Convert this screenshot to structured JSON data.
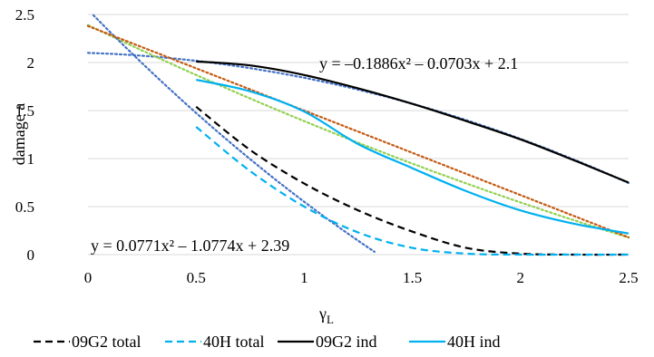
{
  "chart_data": {
    "type": "line",
    "xlabel": "γ",
    "xlabel_sub": "L",
    "ylabel": "damage a",
    "xlim": [
      0,
      2.5
    ],
    "ylim": [
      0,
      2.5
    ],
    "x_ticks": [
      "0",
      "0.5",
      "1",
      "1.5",
      "2",
      "2.5"
    ],
    "y_ticks": [
      "0",
      "0.5",
      "1",
      "1.5",
      "2",
      "2.5"
    ],
    "grid": "horizontal",
    "legend_position": "bottom",
    "series": [
      {
        "name": "09G2 total",
        "color": "#000000",
        "style": "dashed",
        "x": [
          0.5,
          0.75,
          1.0,
          1.25,
          1.5,
          1.75,
          2.0,
          2.25,
          2.5
        ],
        "y": [
          1.54,
          1.09,
          0.74,
          0.46,
          0.24,
          0.07,
          0.01,
          0.0,
          0.0
        ]
      },
      {
        "name": "40H total",
        "color": "#00b0f0",
        "style": "dashed",
        "x": [
          0.5,
          0.75,
          1.0,
          1.25,
          1.5,
          1.75,
          2.0,
          2.25,
          2.5
        ],
        "y": [
          1.33,
          0.87,
          0.5,
          0.23,
          0.07,
          0.01,
          0.0,
          0.0,
          0.0
        ]
      },
      {
        "name": "09G2 ind",
        "color": "#000000",
        "style": "solid",
        "x": [
          0.5,
          0.75,
          1.0,
          1.25,
          1.5,
          1.75,
          2.0,
          2.25,
          2.5
        ],
        "y": [
          2.01,
          1.97,
          1.87,
          1.73,
          1.57,
          1.39,
          1.2,
          0.98,
          0.75
        ]
      },
      {
        "name": "40H ind",
        "color": "#00b0f0",
        "style": "solid",
        "x": [
          0.5,
          0.75,
          1.0,
          1.25,
          1.5,
          1.75,
          2.0,
          2.25,
          2.5
        ],
        "y": [
          1.82,
          1.7,
          1.49,
          1.15,
          0.9,
          0.66,
          0.46,
          0.32,
          0.22
        ]
      }
    ],
    "trendlines": [
      {
        "color": "#4472c4",
        "a": -0.1886,
        "b": -0.0703,
        "c": 2.1
      },
      {
        "color": "#92d050",
        "a": 0.0771,
        "b": -1.0774,
        "c": 2.39
      },
      {
        "color": "#4472c4",
        "a": 0.3,
        "b": -2.3,
        "c": 2.55
      },
      {
        "color": "#c55a11",
        "a": 0.0,
        "b": -0.88,
        "c": 2.38
      }
    ],
    "annotations": [
      "y = –0.1886x² – 0.0703x + 2.1",
      "y = 0.0771x² – 1.0774x + 2.39"
    ]
  }
}
